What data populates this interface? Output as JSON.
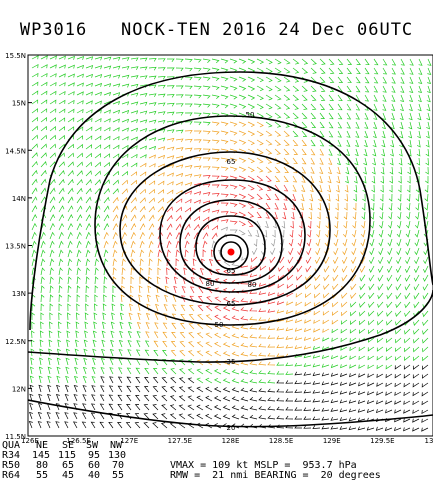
{
  "title": {
    "storm_id": "WP3016",
    "storm_name": "NOCK-TEN",
    "year": "2016",
    "date": "24 Dec",
    "time": "06UTC"
  },
  "map": {
    "lat_ticks": [
      "15.5N",
      "15N",
      "14.5N",
      "14N",
      "13.5N",
      "13N",
      "12.5N",
      "12N",
      "11.5N"
    ],
    "lon_ticks": [
      "126E",
      "126.5E",
      "127E",
      "127.5E",
      "128E",
      "128.5E",
      "129E",
      "129.5E",
      "13"
    ],
    "lat_range": [
      11.5,
      15.5
    ],
    "lon_range": [
      126,
      130
    ],
    "center": {
      "lat": 13.5,
      "lon": 128.05
    },
    "barb_colors": {
      "below_34": "#000000",
      "r34": "#22cc22",
      "r50": "#f0a020",
      "r64": "#ee3333",
      "core": "#999999"
    },
    "contour_labels": [
      "80",
      "80",
      "65",
      "65",
      "65",
      "50",
      "50",
      "35",
      "20"
    ]
  },
  "table": {
    "header": [
      "QUA",
      "NE",
      "SE",
      "SW",
      "NW"
    ],
    "rows": [
      {
        "label": "R34",
        "values": [
          "145",
          "115",
          "95",
          "130"
        ]
      },
      {
        "label": "R50",
        "values": [
          "80",
          "65",
          "60",
          "70"
        ]
      },
      {
        "label": "R64",
        "values": [
          "55",
          "45",
          "40",
          "55"
        ]
      }
    ]
  },
  "summary": {
    "vmax_label": "VMAX =",
    "vmax_value": "109",
    "vmax_unit": "kt",
    "mslp_label": "MSLP =",
    "mslp_value": "953.7",
    "mslp_unit": "hPa",
    "rmw_label": "RMW =",
    "rmw_value": "21",
    "rmw_unit": "nmi",
    "bearing_label": "BEARING =",
    "bearing_value": "20",
    "bearing_unit": "degrees"
  }
}
